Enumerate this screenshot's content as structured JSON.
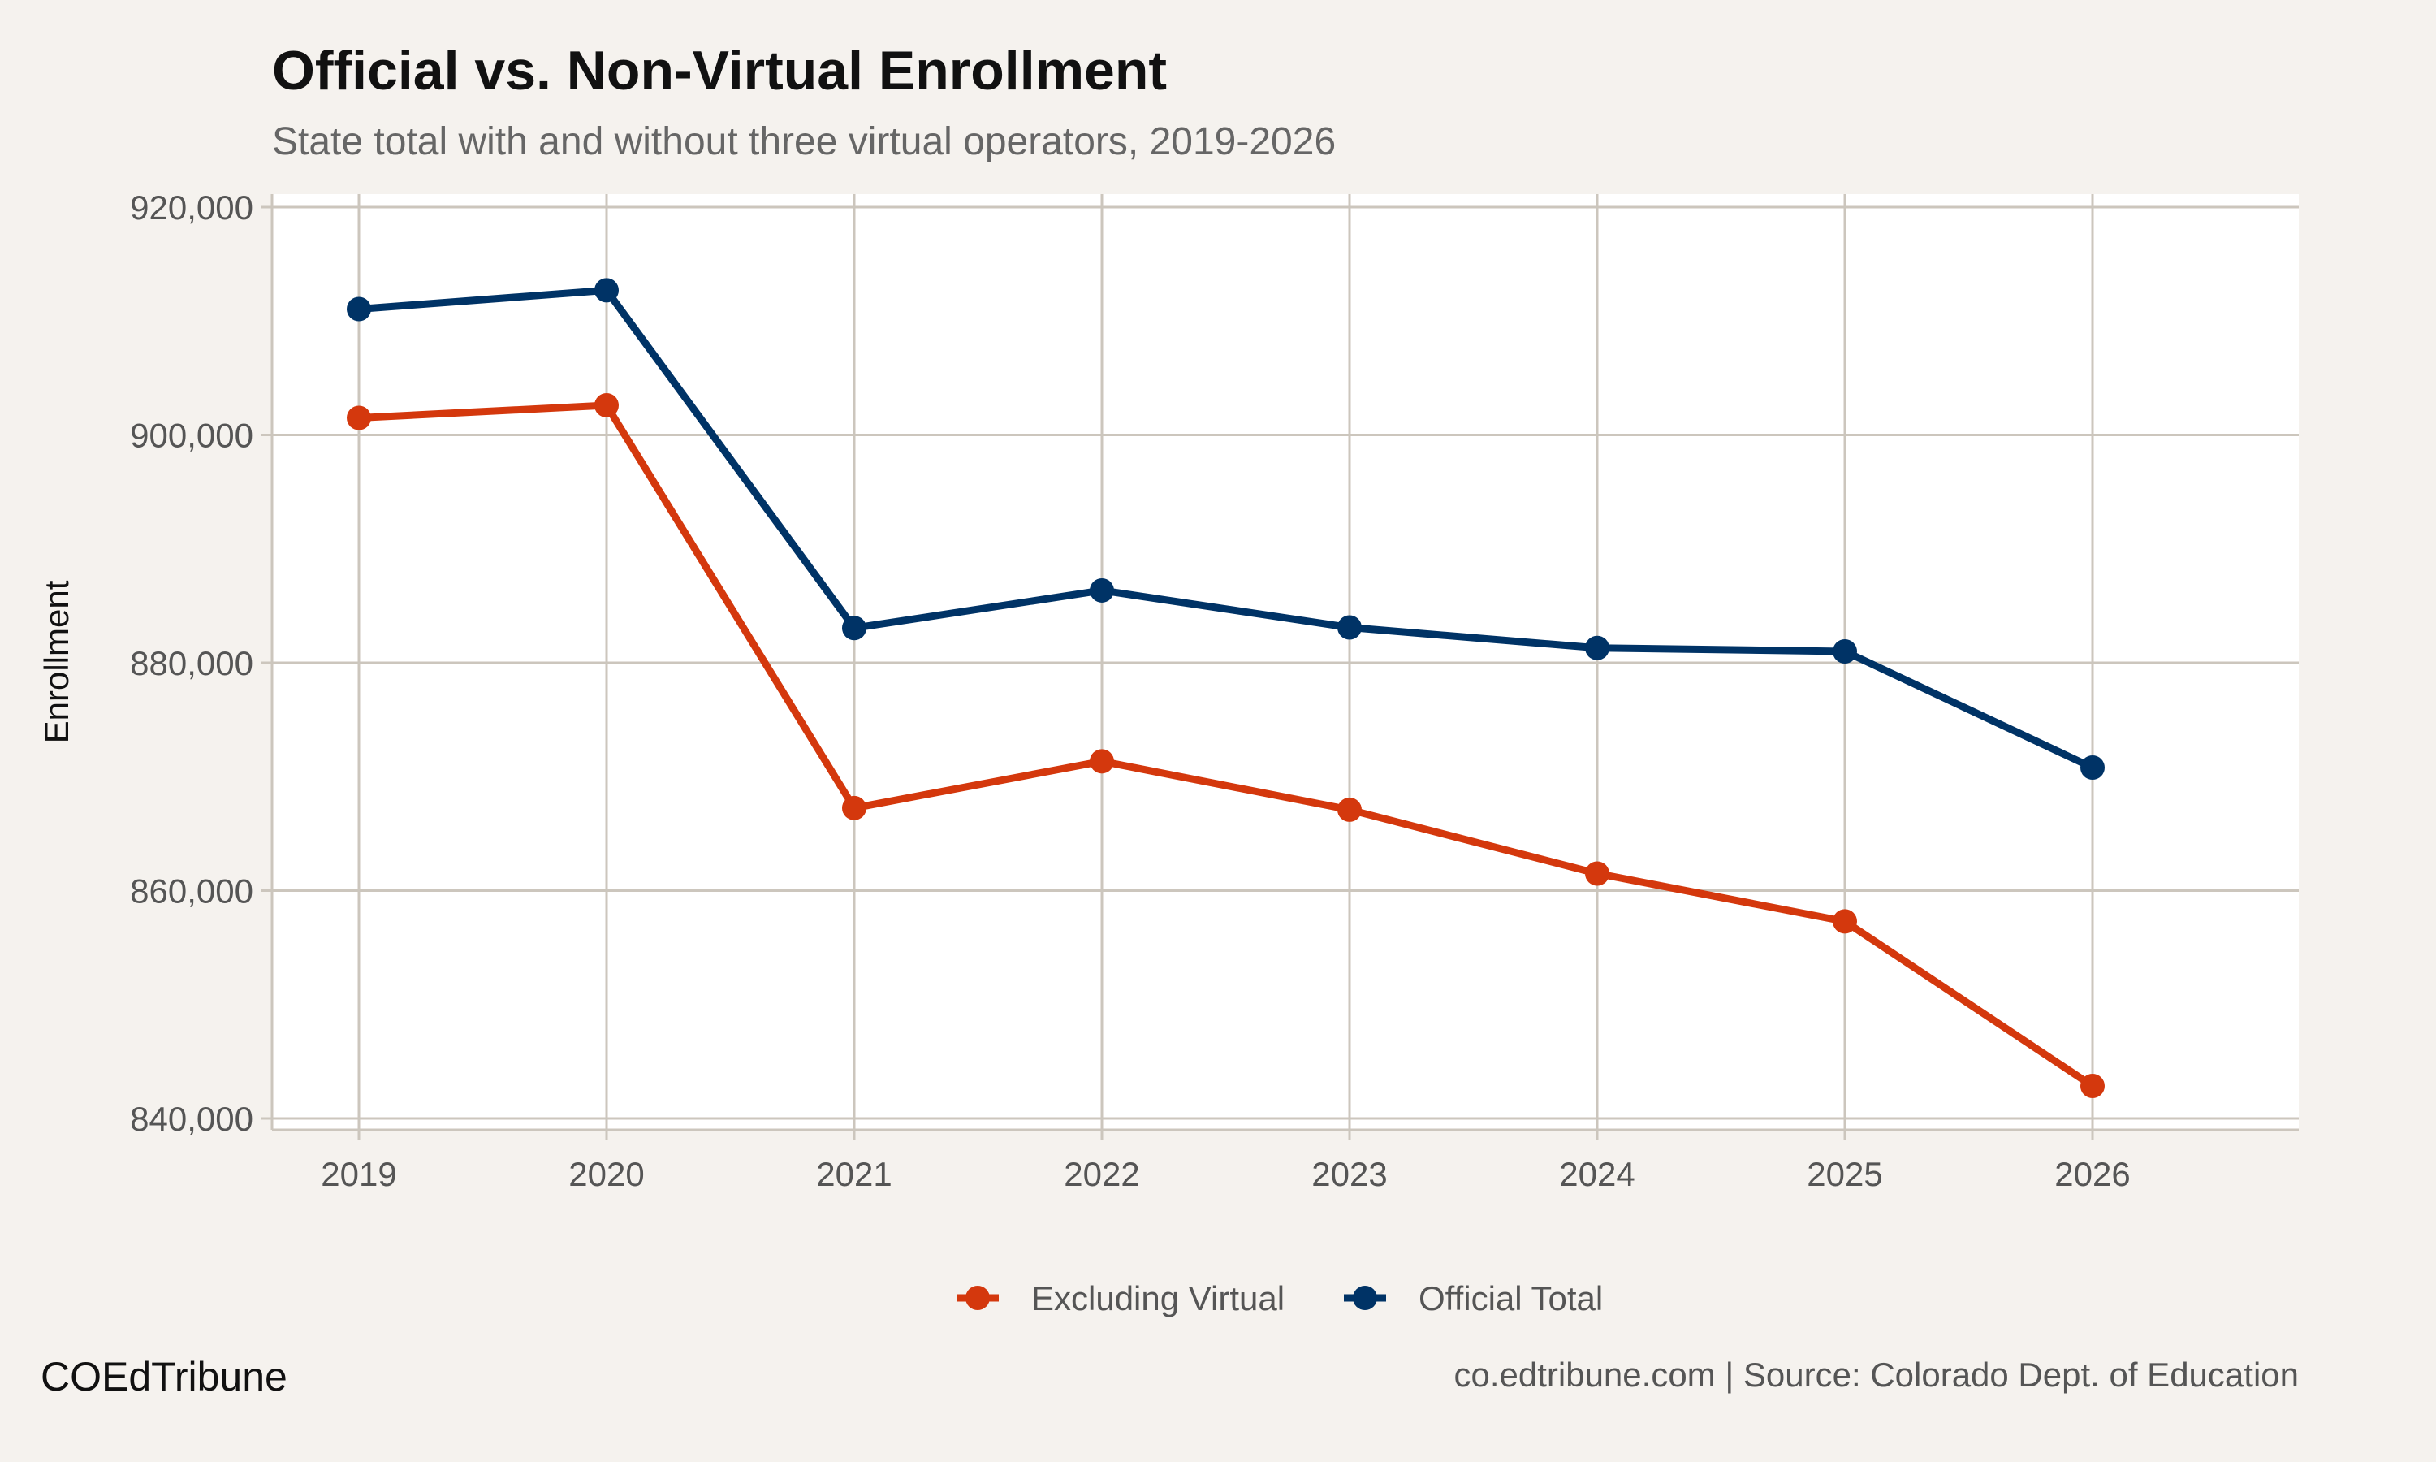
{
  "chart_data": {
    "type": "line",
    "title": "Official vs. Non-Virtual Enrollment",
    "subtitle": "State total with and without three virtual operators, 2019-2026",
    "xlabel": "",
    "ylabel": "Enrollment",
    "x": [
      2019,
      2020,
      2021,
      2022,
      2023,
      2024,
      2025,
      2026
    ],
    "x_tick_labels": [
      "2019",
      "2020",
      "2021",
      "2022",
      "2023",
      "2024",
      "2025",
      "2026"
    ],
    "ylim": [
      840000,
      920000
    ],
    "y_ticks": [
      840000,
      860000,
      880000,
      900000,
      920000
    ],
    "y_tick_labels": [
      "840,000",
      "860,000",
      "880,000",
      "900,000",
      "920,000"
    ],
    "grid": true,
    "legend_position": "bottom",
    "series": [
      {
        "name": "Excluding Virtual",
        "color": "#d4380d",
        "values": [
          901500,
          902600,
          867250,
          871350,
          867100,
          861500,
          857300,
          842850
        ]
      },
      {
        "name": "Official Total",
        "color": "#003366",
        "values": [
          911050,
          912700,
          883050,
          886350,
          883100,
          881300,
          881000,
          870800
        ]
      }
    ]
  },
  "footer": {
    "brand": "COEdTribune",
    "caption": "co.edtribune.com | Source: Colorado Dept. of Education"
  }
}
